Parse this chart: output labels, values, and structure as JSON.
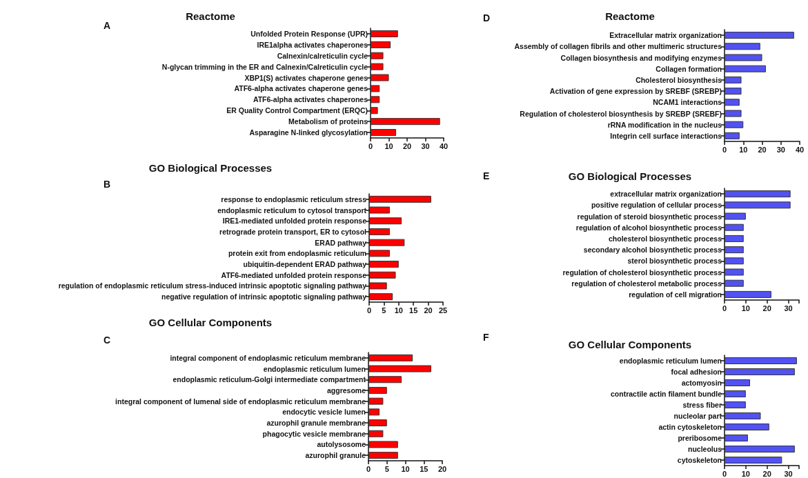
{
  "chart_data": [
    {
      "type": "bar",
      "orientation": "horizontal",
      "title": "Reactome",
      "annotations": [
        "A"
      ],
      "color": "#ff0000",
      "xlim": [
        0,
        40
      ],
      "xticks": [
        0,
        10,
        20,
        30,
        40
      ],
      "grid": false,
      "categories": [
        "Unfolded Protein Response (UPR)",
        "IRE1alpha activates chaperones",
        "Calnexin/calreticulin cycle",
        "N-glycan trimming in the ER and Calnexin/Calreticulin cycle",
        "XBP1(S) activates chaperone genes",
        "ATF6-alpha activates chaperone genes",
        "ATF6-alpha activates chaperones",
        "ER Quality Control Compartment (ERQC)",
        "Metabolism of proteins",
        "Asparagine N-linked glycosylation"
      ],
      "values": [
        15,
        11,
        7,
        7,
        10,
        5,
        5,
        4,
        38,
        14
      ]
    },
    {
      "type": "bar",
      "orientation": "horizontal",
      "title": "GO Biological Processes",
      "annotations": [
        "B"
      ],
      "color": "#ff0000",
      "xlim": [
        0,
        25
      ],
      "xticks": [
        0,
        5,
        10,
        15,
        20,
        25
      ],
      "grid": false,
      "categories": [
        "response to endoplasmic reticulum stress",
        "endoplasmic reticulum to cytosol transport",
        "IRE1-mediated unfolded protein response",
        "retrograde protein transport, ER to cytosol",
        "ERAD pathway",
        "protein exit from endoplasmic reticulum",
        "ubiquitin-dependent ERAD pathway",
        "ATF6-mediated unfolded protein response",
        "regulation of endoplasmic reticulum stress-induced intrinsic apoptotic signaling pathway",
        "negative regulation of intrinsic apoptotic signaling pathway"
      ],
      "values": [
        21,
        7,
        11,
        7,
        12,
        7,
        10,
        9,
        6,
        8
      ]
    },
    {
      "type": "bar",
      "orientation": "horizontal",
      "title": "GO Cellular Components",
      "annotations": [
        "C"
      ],
      "color": "#ff0000",
      "xlim": [
        0,
        20
      ],
      "xticks": [
        0,
        5,
        10,
        15,
        20
      ],
      "grid": false,
      "categories": [
        "integral component of endoplasmic reticulum membrane",
        "endoplasmic reticulum lumen",
        "endoplasmic reticulum-Golgi intermediate compartment",
        "aggresome",
        "integral component of lumenal side of endoplasmic reticulum membrane",
        "endocytic vesicle lumen",
        "azurophil granule membrane",
        "phagocytic vesicle membrane",
        "autolysosome",
        "azurophil granule"
      ],
      "values": [
        12,
        17,
        9,
        5,
        4,
        3,
        5,
        4,
        8,
        8
      ]
    },
    {
      "type": "bar",
      "orientation": "horizontal",
      "title": "Reactome",
      "annotations": [
        "D"
      ],
      "color": "#5252f2",
      "xlim": [
        0,
        40
      ],
      "xticks": [
        0,
        10,
        20,
        30,
        40
      ],
      "grid": false,
      "categories": [
        "Extracellular matrix organization",
        "Assembly of collagen fibrils and other multimeric structures",
        "Collagen biosynthesis and modifying enzymes",
        "Collagen formation",
        "Cholesterol biosynthesis",
        "Activation of gene expression by SREBF (SREBP)",
        "NCAM1 interactions",
        "Regulation of cholesterol biosynthesis by SREBP (SREBF)",
        "rRNA modification in the nucleus",
        "Integrin cell surface interactions"
      ],
      "values": [
        37,
        19,
        20,
        22,
        9,
        9,
        8,
        9,
        10,
        8
      ]
    },
    {
      "type": "bar",
      "orientation": "horizontal",
      "title": "GO Biological Processes",
      "annotations": [
        "E"
      ],
      "color": "#5252f2",
      "xlim": [
        0,
        35
      ],
      "xticks": [
        0,
        10,
        20,
        30,
        {
          "value": 35,
          "label": null
        }
      ],
      "grid": false,
      "categories": [
        "extracellular matrix organization",
        "positive regulation of cellular process",
        "regulation of steroid biosynthetic process",
        "regulation of alcohol biosynthetic process",
        "cholesterol biosynthetic process",
        "secondary alcohol biosynthetic process",
        "sterol biosynthetic process",
        "regulation of cholesterol biosynthetic process",
        "regulation of cholesterol metabolic process",
        "regulation of cell migration"
      ],
      "values": [
        31,
        31,
        10,
        9,
        9,
        9,
        9,
        9,
        9,
        22
      ]
    },
    {
      "type": "bar",
      "orientation": "horizontal",
      "title": "GO Cellular Components",
      "annotations": [
        "F"
      ],
      "color": "#5252f2",
      "xlim": [
        0,
        35
      ],
      "xticks": [
        0,
        10,
        20,
        30,
        {
          "value": 35,
          "label": null
        }
      ],
      "grid": false,
      "categories": [
        "endoplasmic reticulum lumen",
        "focal adhesion",
        "actomyosin",
        "contractile actin filament bundle",
        "stress fiber",
        "nucleolar part",
        "actin cytoskeleton",
        "preribosome",
        "nucleolus",
        "cytoskeleton"
      ],
      "values": [
        34,
        33,
        12,
        10,
        10,
        17,
        21,
        11,
        33,
        27
      ]
    }
  ]
}
